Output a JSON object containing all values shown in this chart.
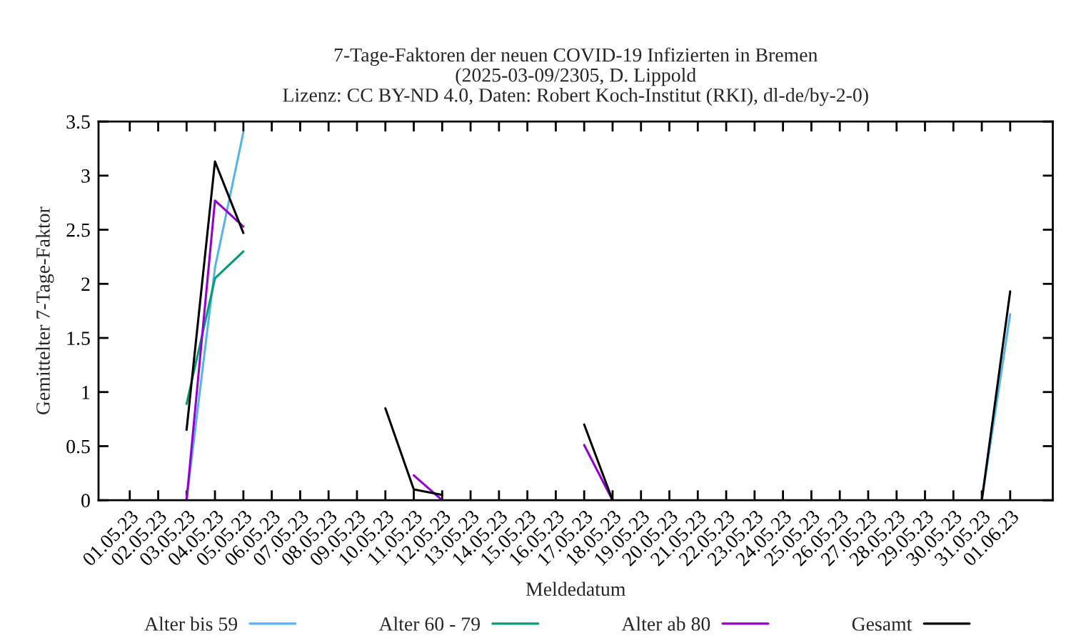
{
  "chart_data": {
    "type": "line",
    "title": "7-Tage-Faktoren der neuen COVID-19 Infizierten in Bremen\n(2025-03-09/2305, D. Lippold\nLizenz: CC BY-ND 4.0, Daten: Robert Koch-Institut (RKI), dl-de/by-2-0)",
    "xlabel": "Meldedatum",
    "ylabel": "Gemittelter 7-Tage-Faktor",
    "categories": [
      "01.05.23",
      "02.05.23",
      "03.05.23",
      "04.05.23",
      "05.05.23",
      "06.05.23",
      "07.05.23",
      "08.05.23",
      "09.05.23",
      "10.05.23",
      "11.05.23",
      "12.05.23",
      "13.05.23",
      "14.05.23",
      "15.05.23",
      "16.05.23",
      "17.05.23",
      "18.05.23",
      "19.05.23",
      "20.05.23",
      "21.05.23",
      "22.05.23",
      "23.05.23",
      "24.05.23",
      "25.05.23",
      "26.05.23",
      "27.05.23",
      "28.05.23",
      "29.05.23",
      "30.05.23",
      "31.05.23",
      "01.06.23"
    ],
    "series": [
      {
        "name": "Alter bis 59",
        "color": "#56b4e9",
        "values": [
          null,
          null,
          0,
          2.15,
          3.4,
          null,
          null,
          null,
          null,
          null,
          null,
          null,
          null,
          null,
          null,
          null,
          null,
          null,
          null,
          null,
          null,
          null,
          null,
          null,
          null,
          null,
          null,
          null,
          null,
          null,
          0,
          1.72
        ]
      },
      {
        "name": "Alter 60 - 79",
        "color": "#009e73",
        "values": [
          null,
          null,
          0.89,
          2.05,
          2.3,
          null,
          null,
          null,
          null,
          null,
          null,
          null,
          null,
          null,
          null,
          null,
          null,
          null,
          null,
          null,
          null,
          null,
          null,
          null,
          null,
          null,
          null,
          null,
          null,
          null,
          null,
          null
        ]
      },
      {
        "name": "Alter ab 80",
        "color": "#9400d3",
        "values": [
          null,
          null,
          0,
          2.77,
          2.53,
          null,
          null,
          null,
          null,
          null,
          0.23,
          0,
          null,
          null,
          null,
          null,
          0.51,
          0,
          null,
          null,
          null,
          null,
          null,
          null,
          null,
          null,
          null,
          null,
          null,
          null,
          null,
          null
        ]
      },
      {
        "name": "Gesamt",
        "color": "#000000",
        "values": [
          null,
          null,
          0.65,
          3.13,
          2.47,
          null,
          null,
          null,
          null,
          0.85,
          0.1,
          0.05,
          null,
          null,
          null,
          null,
          0.7,
          0,
          null,
          null,
          null,
          null,
          null,
          null,
          null,
          null,
          null,
          null,
          null,
          null,
          0,
          1.93
        ]
      }
    ],
    "ylim": [
      0,
      3.5
    ],
    "yticks": [
      0,
      0.5,
      1,
      1.5,
      2,
      2.5,
      3,
      3.5
    ],
    "legend": "bottom",
    "line_style": "solid"
  }
}
